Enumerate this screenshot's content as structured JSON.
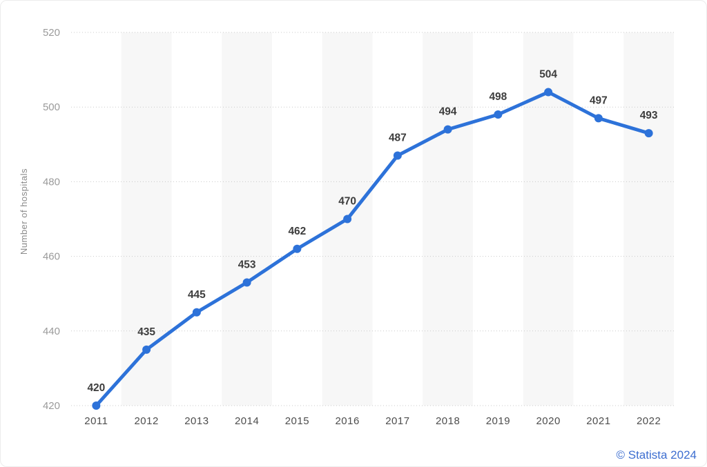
{
  "chart_data": {
    "type": "line",
    "title": "",
    "xlabel": "",
    "ylabel": "Number of hospitals",
    "x": [
      "2011",
      "2012",
      "2013",
      "2014",
      "2015",
      "2016",
      "2017",
      "2018",
      "2019",
      "2020",
      "2021",
      "2022"
    ],
    "series": [
      {
        "name": "Number of hospitals",
        "values": [
          420,
          435,
          445,
          453,
          462,
          470,
          487,
          494,
          498,
          504,
          497,
          493
        ]
      }
    ],
    "data_labels_shown": true,
    "ylim": [
      420,
      520
    ],
    "yticks": [
      420,
      440,
      460,
      480,
      500,
      520
    ],
    "grid": "horizontal-dotted",
    "legend": "none",
    "background_bands": "alternating vertical stripes on even-index columns",
    "colors": {
      "line": "#2d72d9",
      "point": "#2d72d9",
      "band": "#f7f7f7",
      "gridline": "#c9c9c9",
      "data_label": "#3d3d3d",
      "y_tick_label": "#9a9a9a",
      "x_tick_label": "#4d4d4d"
    }
  },
  "credit": "© Statista 2024"
}
